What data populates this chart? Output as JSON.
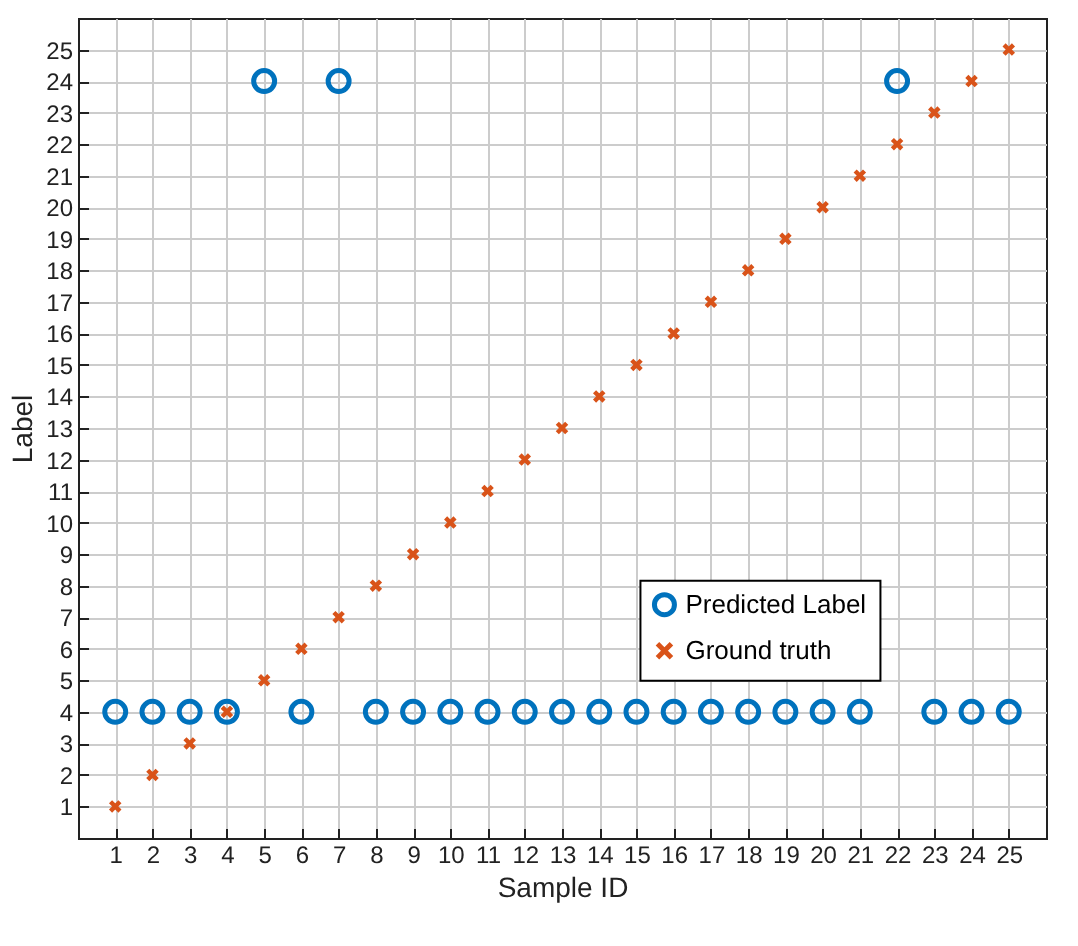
{
  "chart_data": {
    "type": "scatter",
    "xlabel": "Sample ID",
    "ylabel": "Label",
    "x": [
      1,
      2,
      3,
      4,
      5,
      6,
      7,
      8,
      9,
      10,
      11,
      12,
      13,
      14,
      15,
      16,
      17,
      18,
      19,
      20,
      21,
      22,
      23,
      24,
      25
    ],
    "series": [
      {
        "name": "Predicted Label",
        "color": "#0072bd",
        "marker": "circle",
        "values": [
          4,
          4,
          4,
          4,
          24,
          4,
          24,
          4,
          4,
          4,
          4,
          4,
          4,
          4,
          4,
          4,
          4,
          4,
          4,
          4,
          4,
          24,
          4,
          4,
          4
        ]
      },
      {
        "name": "Ground truth",
        "color": "#d95319",
        "marker": "cross",
        "values": [
          1,
          2,
          3,
          4,
          5,
          6,
          7,
          8,
          9,
          10,
          11,
          12,
          13,
          14,
          15,
          16,
          17,
          18,
          19,
          20,
          21,
          22,
          23,
          24,
          25
        ]
      }
    ],
    "xlim": [
      0,
      26
    ],
    "xticks": [
      1,
      2,
      3,
      4,
      5,
      6,
      7,
      8,
      9,
      10,
      11,
      12,
      13,
      14,
      15,
      16,
      17,
      18,
      19,
      20,
      21,
      22,
      23,
      24,
      25
    ],
    "ylim": [
      0,
      26
    ],
    "yticks": [
      1,
      2,
      3,
      4,
      5,
      6,
      7,
      8,
      9,
      10,
      11,
      12,
      13,
      14,
      15,
      16,
      17,
      18,
      19,
      20,
      21,
      22,
      23,
      24,
      25
    ],
    "grid": true,
    "legend": "bottom right"
  }
}
